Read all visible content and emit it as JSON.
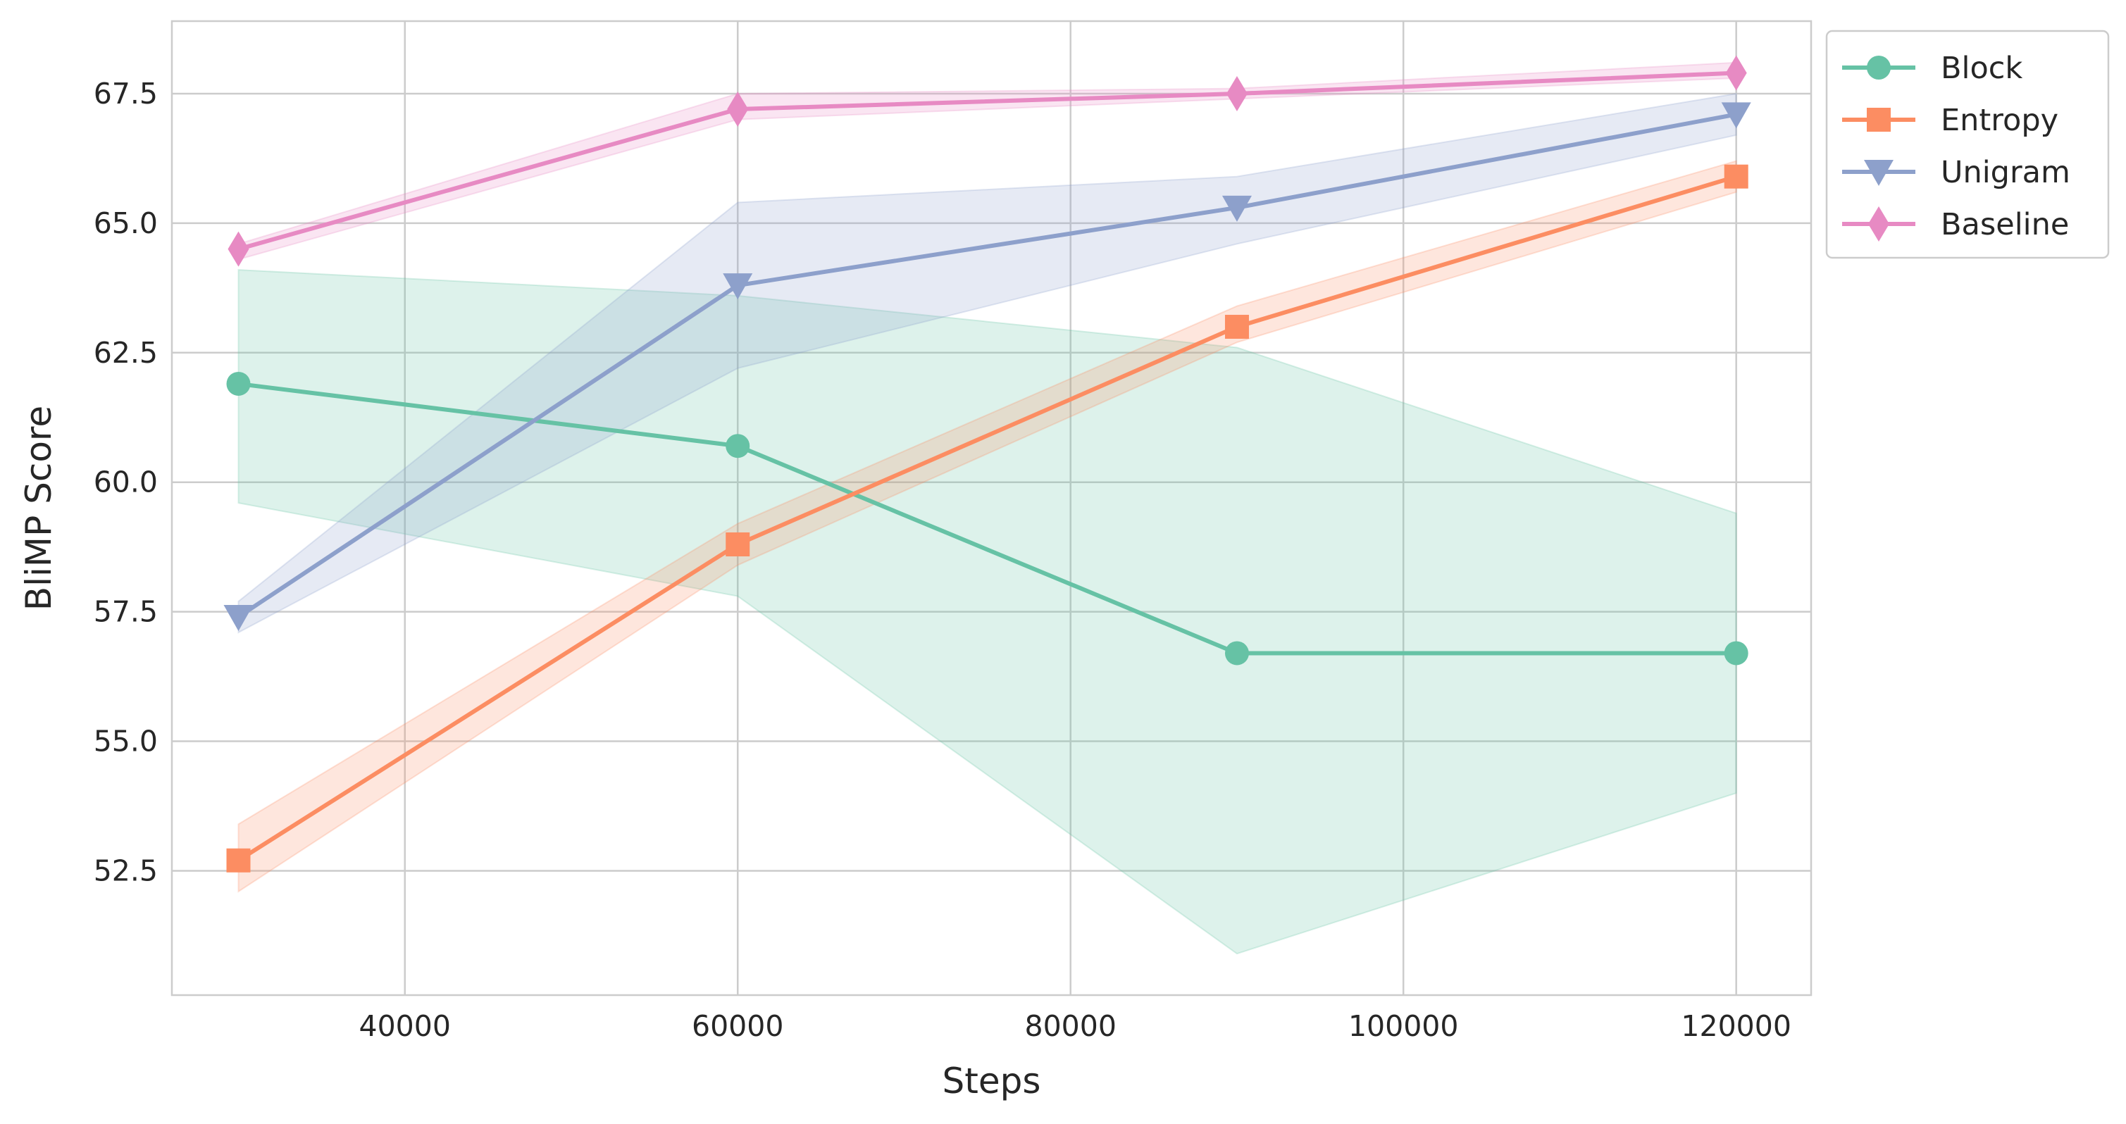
{
  "chart_data": {
    "type": "line",
    "xlabel": "Steps",
    "ylabel": "BliMP Score",
    "xlim": [
      26000,
      124500
    ],
    "ylim": [
      50.1,
      68.9
    ],
    "xticks": [
      40000,
      60000,
      80000,
      100000,
      120000
    ],
    "yticks": [
      52.5,
      55.0,
      57.5,
      60.0,
      62.5,
      65.0,
      67.5
    ],
    "grid": true,
    "legend_position": "outside-top-right",
    "x": [
      30000,
      60000,
      90000,
      120000
    ],
    "series": [
      {
        "name": "Block",
        "color": "#66c2a5",
        "marker": "circle",
        "values": [
          61.9,
          60.7,
          56.7,
          56.7
        ],
        "band_low": [
          59.6,
          57.8,
          50.9,
          54.0
        ],
        "band_high": [
          64.1,
          63.6,
          62.6,
          59.4
        ]
      },
      {
        "name": "Entropy",
        "color": "#fc8d62",
        "marker": "square",
        "values": [
          52.7,
          58.8,
          63.0,
          65.9
        ],
        "band_low": [
          52.1,
          58.4,
          62.7,
          65.6
        ],
        "band_high": [
          53.4,
          59.2,
          63.4,
          66.2
        ]
      },
      {
        "name": "Unigram",
        "color": "#8da0cb",
        "marker": "triangle-down",
        "values": [
          57.4,
          63.8,
          65.3,
          67.1
        ],
        "band_low": [
          57.1,
          62.2,
          64.6,
          66.7
        ],
        "band_high": [
          57.7,
          65.4,
          65.9,
          67.5
        ]
      },
      {
        "name": "Baseline",
        "color": "#e78ac3",
        "marker": "diamond",
        "values": [
          64.5,
          67.2,
          67.5,
          67.9
        ],
        "band_low": [
          64.3,
          67.0,
          67.4,
          67.8
        ],
        "band_high": [
          64.6,
          67.5,
          67.6,
          68.1
        ]
      }
    ]
  }
}
